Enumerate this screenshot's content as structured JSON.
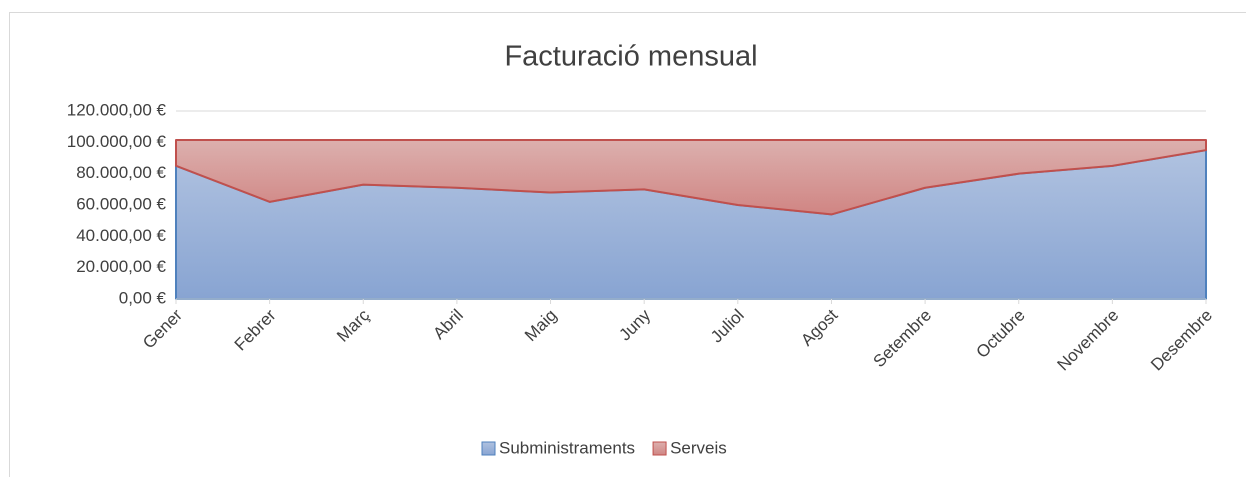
{
  "chart_data": {
    "type": "stacked_area",
    "title": "Facturació mensual",
    "categories": [
      "Gener",
      "Febrer",
      "Març",
      "Abril",
      "Maig",
      "Juny",
      "Juliol",
      "Agost",
      "Setembre",
      "Octubre",
      "Novembre",
      "Desembre"
    ],
    "series": [
      {
        "name": "Subministraments",
        "color": "#4f81bd",
        "values": [
          85000,
          62000,
          73000,
          71000,
          68000,
          70000,
          60000,
          54000,
          71000,
          80000,
          85000,
          95000
        ]
      },
      {
        "name": "Serveis",
        "color": "#c0504d",
        "values": [
          16500,
          39500,
          28500,
          30500,
          33500,
          31500,
          41500,
          47500,
          30500,
          21500,
          16500,
          6500
        ]
      }
    ],
    "ylim": [
      0,
      120000
    ],
    "yticks": [
      {
        "value": 0,
        "label": "0,00 €"
      },
      {
        "value": 20000,
        "label": "20.000,00 €"
      },
      {
        "value": 40000,
        "label": "40.000,00 €"
      },
      {
        "value": 60000,
        "label": "60.000,00 €"
      },
      {
        "value": 80000,
        "label": "80.000,00 €"
      },
      {
        "value": 100000,
        "label": "100.000,00 €"
      },
      {
        "value": 120000,
        "label": "120.000,00 €"
      }
    ],
    "grid": true,
    "legend": "bottom"
  }
}
